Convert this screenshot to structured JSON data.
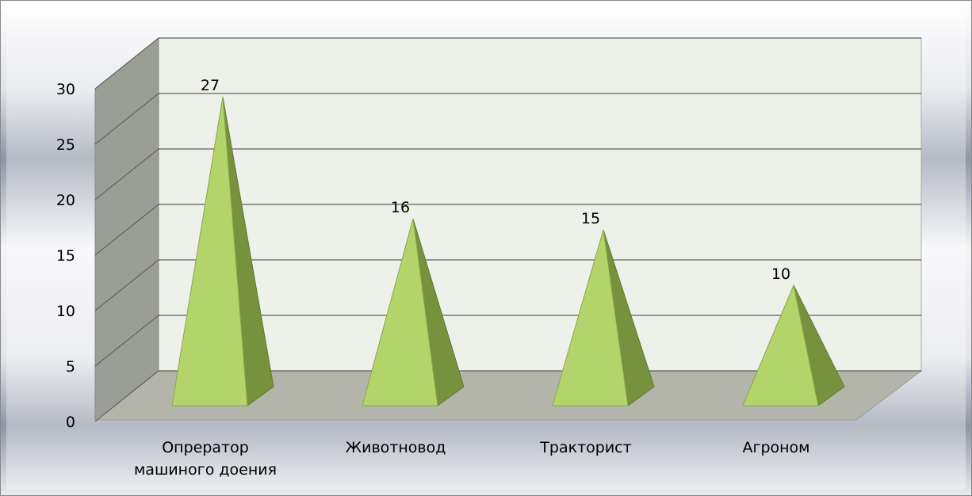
{
  "chart_data": {
    "type": "pyramid3d",
    "categories": [
      "Опрератор машиного доения",
      "Животновод",
      "Тракторист",
      "Агроном"
    ],
    "values": [
      27,
      16,
      15,
      10
    ],
    "color": "#b3d36b",
    "side_color": "#76923c",
    "ylim": [
      0,
      30
    ],
    "yticks": [
      0,
      5,
      10,
      15,
      20,
      25,
      30
    ],
    "grid": true
  }
}
